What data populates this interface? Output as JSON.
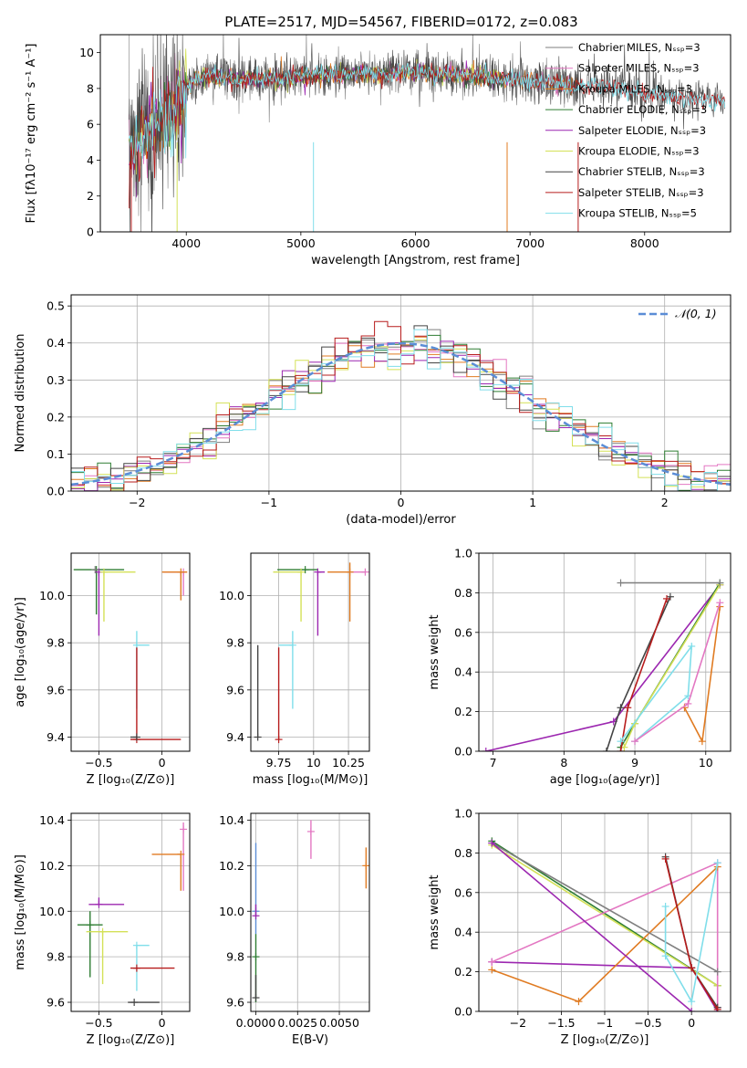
{
  "figure_title": "PLATE=2517, MJD=54567, FIBERID=0172, z=0.083",
  "colors": {
    "chabrier_miles": "#7f7f7f",
    "salpeter_miles": "#e377c2",
    "kroupa_miles": "#e07b22",
    "chabrier_elodie": "#2e7d32",
    "salpeter_elodie": "#9c27b0",
    "kroupa_elodie": "#d4e157",
    "chabrier_stelib": "#444444",
    "salpeter_stelib": "#b71c1c",
    "kroupa_stelib": "#80deea",
    "normal_curve": "#5b8dd6"
  },
  "chart_data": [
    {
      "id": "spectrum",
      "type": "line",
      "xlabel": "wavelength [Angstrom, rest frame]",
      "ylabel": "Flux [fλ10⁻¹⁷ erg cm⁻² s⁻¹ A⁻¹]",
      "xlim": [
        3250,
        8750
      ],
      "ylim": [
        0,
        11
      ],
      "xticks": [
        4000,
        5000,
        6000,
        7000,
        8000
      ],
      "yticks": [
        0,
        2,
        4,
        6,
        8,
        10
      ],
      "legend_position": "top-right",
      "series": [
        {
          "name": "Chabrier MILES, Nₛₛₚ=3",
          "key": "chabrier_miles",
          "x_range": [
            3500,
            7420
          ]
        },
        {
          "name": "Salpeter MILES, Nₛₛₚ=3",
          "key": "salpeter_miles",
          "x_range": [
            3500,
            7420
          ]
        },
        {
          "name": "Kroupa MILES, Nₛₛₚ=3",
          "key": "kroupa_miles",
          "x_range": [
            3500,
            7420
          ]
        },
        {
          "name": "Chabrier ELODIE, Nₛₛₚ=3",
          "key": "chabrier_elodie",
          "x_range": [
            3500,
            6800
          ]
        },
        {
          "name": "Salpeter ELODIE, Nₛₛₚ=3",
          "key": "salpeter_elodie",
          "x_range": [
            3500,
            6800
          ]
        },
        {
          "name": "Kroupa ELODIE, Nₛₛₚ=3",
          "key": "kroupa_elodie",
          "x_range": [
            3500,
            6800
          ]
        },
        {
          "name": "Chabrier STELIB, Nₛₛₚ=3",
          "key": "chabrier_stelib",
          "x_range": [
            3500,
            8700
          ]
        },
        {
          "name": "Salpeter STELIB, Nₛₛₚ=3",
          "key": "salpeter_stelib",
          "x_range": [
            3500,
            8700
          ]
        },
        {
          "name": "Kroupa STELIB, Nₛₛₚ=5",
          "key": "kroupa_stelib",
          "x_range": [
            3500,
            8700
          ]
        }
      ],
      "continuum_x": [
        3500,
        3700,
        3900,
        4000,
        4100,
        4300,
        4500,
        4800,
        5000,
        5500,
        6000,
        6500,
        7000,
        7400,
        7800,
        8000,
        8300,
        8700
      ],
      "continuum_y": [
        4.6,
        5.8,
        7.0,
        8.0,
        8.6,
        8.7,
        8.5,
        8.5,
        8.7,
        8.8,
        8.9,
        8.7,
        8.4,
        8.2,
        8.0,
        7.7,
        7.5,
        7.3
      ]
    },
    {
      "id": "residuals",
      "type": "step",
      "xlabel": "(data-model)/error",
      "ylabel": "Normed distribution",
      "xlim": [
        -2.5,
        2.5
      ],
      "ylim": [
        0,
        0.53
      ],
      "xticks": [
        -2,
        -1,
        0,
        1,
        2
      ],
      "yticks": [
        0.0,
        0.1,
        0.2,
        0.3,
        0.4,
        0.5
      ],
      "legend": "𝒩(0, 1)",
      "legend_position": "top-right",
      "bin_width": 0.1
    },
    {
      "id": "age_vs_Z",
      "type": "errorbar",
      "xlabel": "Z [log₁₀(Z/Z⊙)]",
      "ylabel": "age  [log₁₀(age/yr)]",
      "xlim": [
        -0.72,
        0.22
      ],
      "ylim": [
        9.34,
        10.18
      ],
      "xticks": [
        -0.5,
        0.0
      ],
      "yticks": [
        9.4,
        9.6,
        9.8,
        10.0
      ],
      "points": [
        {
          "key": "chabrier_elodie",
          "x": -0.52,
          "y": 10.11,
          "xerr": [
            0.18,
            0.22
          ],
          "yerr": [
            0.19,
            0.0
          ]
        },
        {
          "key": "salpeter_elodie",
          "x": -0.5,
          "y": 10.1,
          "xerr": [
            0.0,
            0.0
          ],
          "yerr": [
            0.27,
            0.0
          ]
        },
        {
          "key": "kroupa_elodie",
          "x": -0.46,
          "y": 10.1,
          "xerr": [
            0.0,
            0.25
          ],
          "yerr": [
            0.21,
            0.0
          ]
        },
        {
          "key": "chabrier_miles",
          "x": -0.53,
          "y": 10.11,
          "xerr": [
            0.0,
            0.0
          ],
          "yerr": [
            0.0,
            0.0
          ]
        },
        {
          "key": "salpeter_miles",
          "x": 0.17,
          "y": 10.1,
          "xerr": [
            0.16,
            0.0
          ],
          "yerr": [
            0.1,
            0.0
          ]
        },
        {
          "key": "kroupa_miles",
          "x": 0.15,
          "y": 10.1,
          "xerr": [
            0.15,
            0.05
          ],
          "yerr": [
            0.12,
            0.0
          ]
        },
        {
          "key": "kroupa_stelib",
          "x": -0.2,
          "y": 9.79,
          "xerr": [
            0.0,
            0.1
          ],
          "yerr": [
            0.27,
            0.06
          ]
        },
        {
          "key": "salpeter_stelib",
          "x": -0.2,
          "y": 9.39,
          "xerr": [
            0.05,
            0.35
          ],
          "yerr": [
            0.0,
            0.39
          ]
        },
        {
          "key": "chabrier_stelib",
          "x": -0.2,
          "y": 9.4,
          "xerr": [
            0.05,
            0.0
          ],
          "yerr": [
            0.0,
            0.0
          ]
        }
      ]
    },
    {
      "id": "age_vs_mass",
      "type": "errorbar",
      "xlabel": "mass [log₁₀(M/M⊙)]",
      "ylabel": "",
      "xlim": [
        9.55,
        10.4
      ],
      "ylim": [
        9.34,
        10.18
      ],
      "xticks": [
        9.75,
        10.0,
        10.25
      ],
      "yticks": [
        9.4,
        9.6,
        9.8,
        10.0
      ],
      "points": [
        {
          "key": "chabrier_elodie",
          "x": 9.94,
          "y": 10.11,
          "xerr": [
            0.2,
            0.09
          ],
          "yerr": [
            0.0,
            0.0
          ]
        },
        {
          "key": "kroupa_elodie",
          "x": 9.91,
          "y": 10.1,
          "xerr": [
            0.2,
            0.0
          ],
          "yerr": [
            0.21,
            0.0
          ]
        },
        {
          "key": "salpeter_elodie",
          "x": 10.03,
          "y": 10.1,
          "xerr": [
            0.0,
            0.05
          ],
          "yerr": [
            0.27,
            0.0
          ]
        },
        {
          "key": "salpeter_miles",
          "x": 10.37,
          "y": 10.1,
          "xerr": [
            0.1,
            0.0
          ],
          "yerr": [
            0.0,
            0.0
          ]
        },
        {
          "key": "kroupa_miles",
          "x": 10.26,
          "y": 10.1,
          "xerr": [
            0.16,
            0.0
          ],
          "yerr": [
            0.21,
            0.04
          ]
        },
        {
          "key": "kroupa_stelib",
          "x": 9.85,
          "y": 9.79,
          "xerr": [
            0.1,
            0.0
          ],
          "yerr": [
            0.27,
            0.06
          ]
        },
        {
          "key": "salpeter_stelib",
          "x": 9.75,
          "y": 9.39,
          "xerr": [
            0.0,
            0.0
          ],
          "yerr": [
            0.0,
            0.39
          ]
        },
        {
          "key": "chabrier_stelib",
          "x": 9.6,
          "y": 9.4,
          "xerr": [
            0.0,
            0.0
          ],
          "yerr": [
            0.0,
            0.39
          ]
        }
      ]
    },
    {
      "id": "weights_vs_age",
      "type": "line_markers",
      "xlabel": "age  [log₁₀(age/yr)]",
      "ylabel": "mass weight",
      "xlim": [
        6.8,
        10.35
      ],
      "ylim": [
        0.0,
        1.0
      ],
      "xticks": [
        7,
        8,
        9,
        10
      ],
      "yticks": [
        0.0,
        0.2,
        0.4,
        0.6,
        0.8,
        1.0
      ],
      "series": [
        {
          "key": "salpeter_elodie",
          "x": [
            6.9,
            8.7,
            10.2
          ],
          "y": [
            0.0,
            0.15,
            0.84
          ]
        },
        {
          "key": "chabrier_elodie",
          "x": [
            8.8,
            9.0,
            10.2
          ],
          "y": [
            0.02,
            0.14,
            0.85
          ]
        },
        {
          "key": "kroupa_elodie",
          "x": [
            8.85,
            9.0,
            10.2
          ],
          "y": [
            0.02,
            0.14,
            0.84
          ]
        },
        {
          "key": "chabrier_stelib",
          "x": [
            8.6,
            8.8,
            9.5
          ],
          "y": [
            0.0,
            0.22,
            0.78
          ]
        },
        {
          "key": "salpeter_stelib",
          "x": [
            8.8,
            8.9,
            9.45
          ],
          "y": [
            0.0,
            0.22,
            0.77
          ]
        },
        {
          "key": "kroupa_stelib",
          "x": [
            8.8,
            9.8,
            9.75,
            9.0
          ],
          "y": [
            0.05,
            0.53,
            0.28,
            0.05
          ]
        },
        {
          "key": "kroupa_miles",
          "x": [
            9.7,
            9.95,
            10.2
          ],
          "y": [
            0.22,
            0.05,
            0.73
          ]
        },
        {
          "key": "salpeter_miles",
          "x": [
            9.0,
            9.75,
            10.2
          ],
          "y": [
            0.05,
            0.24,
            0.75
          ]
        },
        {
          "key": "chabrier_miles",
          "x": [
            8.8,
            10.2
          ],
          "y": [
            0.85,
            0.85
          ]
        }
      ]
    },
    {
      "id": "mass_vs_Z",
      "type": "errorbar",
      "xlabel": "Z [log₁₀(Z/Z⊙)]",
      "ylabel": "mass [log₁₀(M/M⊙)]",
      "xlim": [
        -0.72,
        0.22
      ],
      "ylim": [
        9.56,
        10.43
      ],
      "xticks": [
        -0.5,
        0.0
      ],
      "yticks": [
        9.6,
        9.8,
        10.0,
        10.2,
        10.4
      ],
      "points": [
        {
          "key": "salpeter_miles",
          "x": 0.17,
          "y": 10.36,
          "xerr": [
            0.0,
            0.0
          ],
          "yerr": [
            0.27,
            0.03
          ]
        },
        {
          "key": "kroupa_miles",
          "x": 0.15,
          "y": 10.25,
          "xerr": [
            0.23,
            0.0
          ],
          "yerr": [
            0.16,
            0.0
          ]
        },
        {
          "key": "salpeter_elodie",
          "x": -0.5,
          "y": 10.03,
          "xerr": [
            0.08,
            0.2
          ],
          "yerr": [
            0.0,
            0.03
          ]
        },
        {
          "key": "chabrier_elodie",
          "x": -0.57,
          "y": 9.94,
          "xerr": [
            0.1,
            0.1
          ],
          "yerr": [
            0.23,
            0.06
          ]
        },
        {
          "key": "kroupa_elodie",
          "x": -0.47,
          "y": 9.91,
          "xerr": [
            0.13,
            0.2
          ],
          "yerr": [
            0.23,
            0.0
          ]
        },
        {
          "key": "kroupa_stelib",
          "x": -0.2,
          "y": 9.85,
          "xerr": [
            0.0,
            0.1
          ],
          "yerr": [
            0.2,
            0.0
          ]
        },
        {
          "key": "salpeter_stelib",
          "x": -0.2,
          "y": 9.75,
          "xerr": [
            0.05,
            0.3
          ],
          "yerr": [
            0.0,
            0.0
          ]
        },
        {
          "key": "chabrier_stelib",
          "x": -0.22,
          "y": 9.6,
          "xerr": [
            0.05,
            0.2
          ],
          "yerr": [
            0.0,
            0.0
          ]
        }
      ]
    },
    {
      "id": "mass_vs_ebv",
      "type": "errorbar",
      "xlabel": "E(B-V)",
      "ylabel": "",
      "xlim": [
        -0.0003,
        0.0068
      ],
      "ylim": [
        9.56,
        10.43
      ],
      "xticks": [
        0.0,
        0.0025,
        0.005
      ],
      "xticklabels": [
        "0.0000",
        "0.0025",
        "0.0050"
      ],
      "yticks": [
        9.6,
        9.8,
        10.0,
        10.2,
        10.4
      ],
      "points": [
        {
          "key": "normal_curve",
          "x": 0.0,
          "y": 10.0,
          "yerr": [
            0.1,
            0.3
          ]
        },
        {
          "key": "salpeter_elodie",
          "x": 0.0,
          "y": 9.98,
          "yerr": [
            0.0,
            0.05
          ]
        },
        {
          "key": "chabrier_elodie",
          "x": 0.0,
          "y": 9.8,
          "yerr": [
            0.2,
            0.1
          ]
        },
        {
          "key": "chabrier_stelib",
          "x": 0.0,
          "y": 9.62,
          "yerr": [
            0.0,
            0.1
          ]
        },
        {
          "key": "salpeter_miles",
          "x": 0.0033,
          "y": 10.35,
          "yerr": [
            0.12,
            0.05
          ]
        },
        {
          "key": "kroupa_miles",
          "x": 0.0066,
          "y": 10.2,
          "yerr": [
            0.1,
            0.08
          ]
        }
      ]
    },
    {
      "id": "weights_vs_Z",
      "type": "line_markers",
      "xlabel": "Z [log₁₀(Z/Z⊙)]",
      "ylabel": "mass weight",
      "xlim": [
        -2.45,
        0.45
      ],
      "ylim": [
        0.0,
        1.0
      ],
      "xticks": [
        -2.0,
        -1.5,
        -1.0,
        -0.5,
        0.0
      ],
      "yticks": [
        0.0,
        0.2,
        0.4,
        0.6,
        0.8,
        1.0
      ],
      "series": [
        {
          "key": "chabrier_elodie",
          "x": [
            -2.3,
            0.3
          ],
          "y": [
            0.86,
            0.13
          ]
        },
        {
          "key": "kroupa_elodie",
          "x": [
            -2.3,
            0.3
          ],
          "y": [
            0.84,
            0.13
          ]
        },
        {
          "key": "salpeter_elodie",
          "x": [
            -2.3,
            0.0,
            0.3
          ],
          "y": [
            0.25,
            0.22,
            0.0
          ]
        },
        {
          "key": "salpeter_miles",
          "x": [
            -2.3,
            0.3,
            0.3
          ],
          "y": [
            0.25,
            0.75,
            0.02
          ]
        },
        {
          "key": "kroupa_miles",
          "x": [
            -2.3,
            -1.3,
            0.3
          ],
          "y": [
            0.21,
            0.05,
            0.73
          ]
        },
        {
          "key": "chabrier_miles",
          "x": [
            -2.3,
            0.3
          ],
          "y": [
            0.85,
            0.2
          ]
        },
        {
          "key": "chabrier_stelib",
          "x": [
            -0.3,
            0.0,
            0.3
          ],
          "y": [
            0.78,
            0.22,
            0.02
          ]
        },
        {
          "key": "salpeter_stelib",
          "x": [
            -0.3,
            0.0,
            0.3
          ],
          "y": [
            0.77,
            0.22,
            0.01
          ]
        },
        {
          "key": "kroupa_stelib",
          "x": [
            -0.3,
            -0.3,
            0.0,
            0.3
          ],
          "y": [
            0.53,
            0.28,
            0.05,
            0.75
          ]
        },
        {
          "key": "salpeter_elodie_b",
          "x": [
            -2.3,
            0.0
          ],
          "y": [
            0.85,
            0.0
          ]
        }
      ]
    }
  ]
}
